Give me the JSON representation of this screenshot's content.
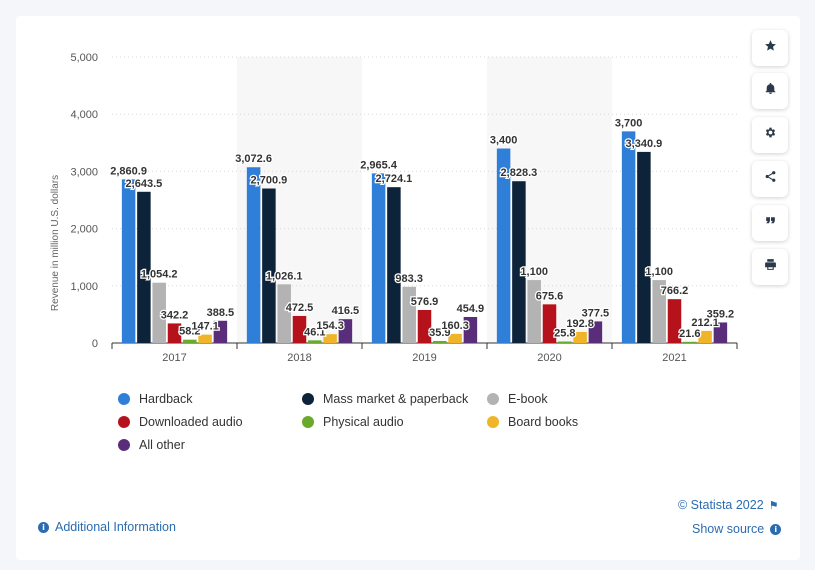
{
  "source": {
    "copyright": "© Statista 2022",
    "show_source": "Show source"
  },
  "additional_info": "Additional Information",
  "side_buttons": [
    "star-icon",
    "bell-icon",
    "gear-icon",
    "share-icon",
    "quote-icon",
    "print-icon"
  ],
  "chart_data": {
    "type": "bar",
    "ylabel": "Revenue in million U.S. dollars",
    "xlabel": "",
    "ylim": [
      0,
      5000
    ],
    "yticks": [
      0,
      1000,
      2000,
      3000,
      4000,
      5000
    ],
    "ytick_labels": [
      "0",
      "1,000",
      "2,000",
      "3,000",
      "4,000",
      "5,000"
    ],
    "grid": true,
    "legend_position": "bottom",
    "categories": [
      "2017",
      "2018",
      "2019",
      "2020",
      "2021"
    ],
    "series": [
      {
        "name": "Hardback",
        "color": "#2f7ed8",
        "values": [
          2860.9,
          3072.6,
          2965.4,
          3400,
          3700
        ],
        "labels": [
          "2,860.9",
          "3,072.6",
          "2,965.4",
          "3,400",
          "3,700"
        ]
      },
      {
        "name": "Mass market & paperback",
        "color": "#0d233a",
        "values": [
          2643.5,
          2700.9,
          2724.1,
          2828.3,
          3340.9
        ],
        "labels": [
          "2,643.5",
          "2,700.9",
          "2,724.1",
          "2,828.3",
          "3,340.9"
        ]
      },
      {
        "name": "E-book",
        "color": "#b3b3b3",
        "values": [
          1054.2,
          1026.1,
          983.3,
          1100,
          1100
        ],
        "labels": [
          "1,054.2",
          "1,026.1",
          "983.3",
          "1,100",
          "1,100"
        ]
      },
      {
        "name": "Downloaded audio",
        "color": "#b5121b",
        "values": [
          342.2,
          472.5,
          576.9,
          675.6,
          766.2
        ],
        "labels": [
          "342.2",
          "472.5",
          "576.9",
          "675.6",
          "766.2"
        ]
      },
      {
        "name": "Physical audio",
        "color": "#6aaa2b",
        "values": [
          58.2,
          46.1,
          35.9,
          25.8,
          21.6
        ],
        "labels": [
          "58.2",
          "46.1",
          "35.9",
          "25.8",
          "21.6"
        ]
      },
      {
        "name": "Board books",
        "color": "#f0b429",
        "values": [
          147.1,
          154.3,
          160.3,
          192.8,
          212.1
        ],
        "labels": [
          "147.1",
          "154.3",
          "160.3",
          "192.8",
          "212.1"
        ]
      },
      {
        "name": "All other",
        "color": "#5a2d7a",
        "values": [
          388.5,
          416.5,
          454.9,
          377.5,
          359.2
        ],
        "labels": [
          "388.5",
          "416.5",
          "454.9",
          "377.5",
          "359.2"
        ]
      }
    ]
  }
}
